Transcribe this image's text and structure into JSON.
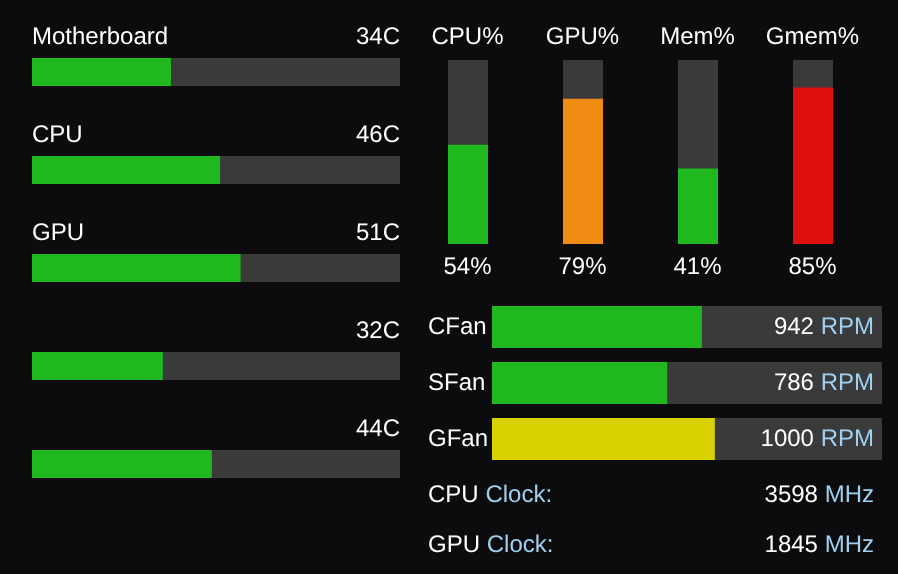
{
  "chart_data": [
    {
      "type": "bar",
      "orientation": "horizontal",
      "categories": [
        "Motherboard",
        "CPU",
        "GPU",
        null,
        null
      ],
      "values": [
        34,
        46,
        51,
        32,
        44
      ],
      "value_labels": [
        "34C",
        "46C",
        "51C",
        "32C",
        "44C"
      ],
      "color": "#1fb81f",
      "xlim": [
        0,
        90
      ],
      "tick_labels": false
    },
    {
      "type": "bar",
      "categories": [
        "CPU%",
        "GPU%",
        "Mem%",
        "Gmem%"
      ],
      "values": [
        54,
        79,
        41,
        85
      ],
      "value_labels": [
        "54%",
        "79%",
        "41%",
        "85%"
      ],
      "colors": [
        "#1fb81f",
        "#f08c14",
        "#1fb81f",
        "#e00f0f"
      ],
      "ylim": [
        0,
        100
      ],
      "tick_labels": false
    },
    {
      "type": "bar",
      "orientation": "horizontal",
      "categories": [
        "CFan",
        "SFan",
        "GFan"
      ],
      "values": [
        942,
        786,
        1000
      ],
      "value_labels": [
        "942 RPM",
        "786 RPM",
        "1000 RPM"
      ],
      "colors": [
        "#1fb81f",
        "#1fb81f",
        "#d8d000"
      ],
      "xlim": [
        0,
        1750
      ],
      "tick_labels": false,
      "annotations": [
        "CPU Clock:",
        "3598 MHz",
        "GPU Clock:",
        "1845 MHz"
      ]
    }
  ]
}
